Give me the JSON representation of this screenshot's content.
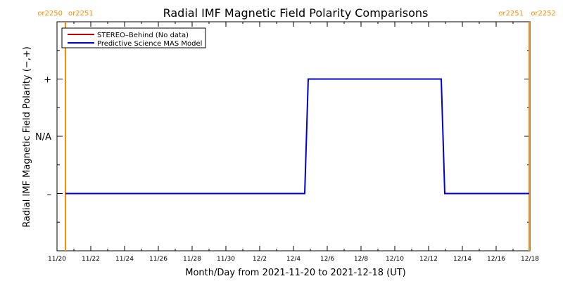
{
  "chart_data": {
    "type": "line",
    "title": "Radial IMF Magnetic Field Polarity Comparisons",
    "xlabel": "Month/Day from 2021-11-20 to 2021-12-18 (UT)",
    "ylabel": "Radial IMF Magnetic Field Polarity (−,+)",
    "xlim": [
      "2021-11-20",
      "2021-12-18"
    ],
    "x_ticks": [
      {
        "date": "2021-11-20",
        "label": "11/20"
      },
      {
        "date": "2021-11-22",
        "label": "11/22"
      },
      {
        "date": "2021-11-24",
        "label": "11/24"
      },
      {
        "date": "2021-11-26",
        "label": "11/26"
      },
      {
        "date": "2021-11-28",
        "label": "11/28"
      },
      {
        "date": "2021-11-30",
        "label": "11/30"
      },
      {
        "date": "2021-12-02",
        "label": "12/2"
      },
      {
        "date": "2021-12-04",
        "label": "12/4"
      },
      {
        "date": "2021-12-06",
        "label": "12/6"
      },
      {
        "date": "2021-12-08",
        "label": "12/8"
      },
      {
        "date": "2021-12-10",
        "label": "12/10"
      },
      {
        "date": "2021-12-12",
        "label": "12/12"
      },
      {
        "date": "2021-12-14",
        "label": "12/14"
      },
      {
        "date": "2021-12-16",
        "label": "12/16"
      },
      {
        "date": "2021-12-18",
        "label": "12/18"
      }
    ],
    "y_categories": [
      {
        "value": 1,
        "label": "+"
      },
      {
        "value": 0,
        "label": "N/A"
      },
      {
        "value": -1,
        "label": "–"
      }
    ],
    "ylim": [
      -2,
      2
    ],
    "legend_position": "top-left",
    "series": [
      {
        "name": "STEREO–Behind (No data)",
        "color": "#c00000",
        "points": []
      },
      {
        "name": "Predictive Science MAS Model",
        "color": "#0000cc",
        "points": [
          {
            "x": "2021-11-20 12:00",
            "y": -1
          },
          {
            "x": "2021-12-04 16:00",
            "y": -1
          },
          {
            "x": "2021-12-04 21:00",
            "y": 1
          },
          {
            "x": "2021-12-12 18:00",
            "y": 1
          },
          {
            "x": "2021-12-12 23:00",
            "y": -1
          },
          {
            "x": "2021-12-17 23:00",
            "y": -1
          }
        ]
      }
    ],
    "carrington_markers": [
      {
        "date": "2021-11-20 12:00",
        "label_left": "or2250",
        "label_right": "or2251"
      },
      {
        "date": "2021-12-17 23:00",
        "label_left": "or2251",
        "label_right": "or2252"
      }
    ],
    "marker_color": "#ff8c00"
  }
}
